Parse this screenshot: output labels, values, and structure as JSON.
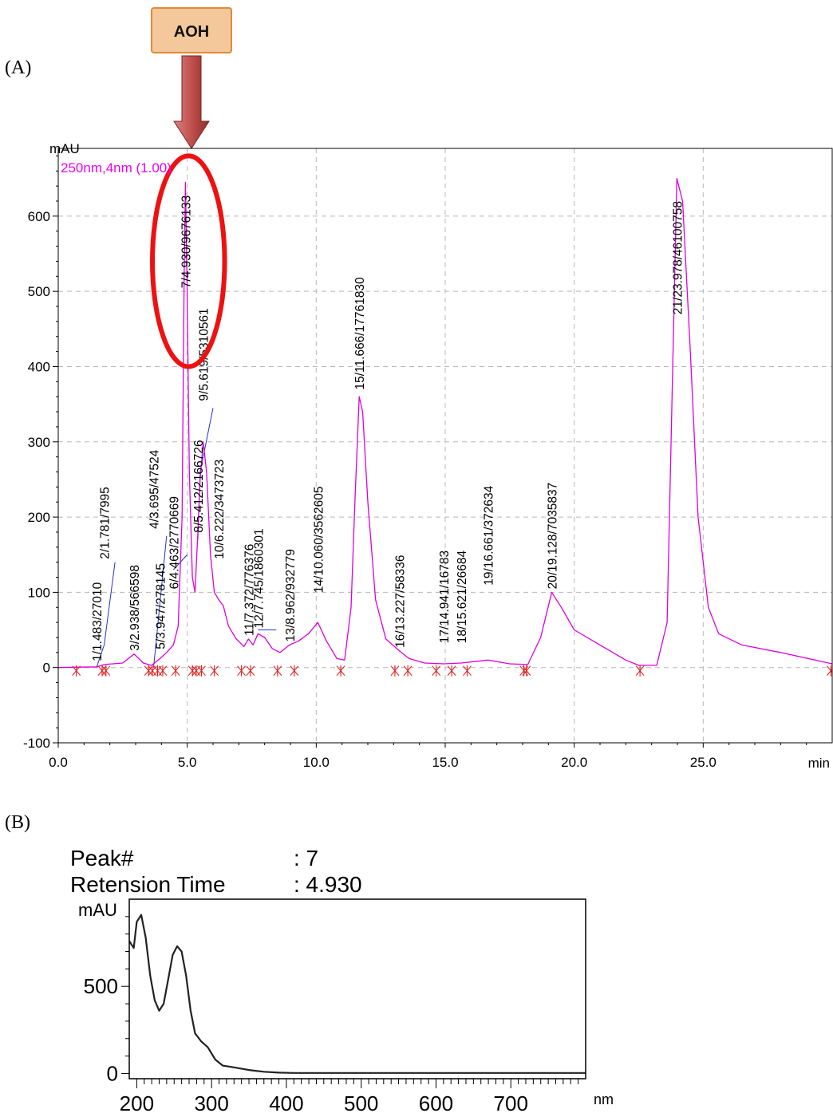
{
  "panel_a": {
    "label": "(A)",
    "callout": {
      "text": "AOH",
      "fill": "#f4c89a",
      "border": "#e08a3a",
      "arrow_color": "#c0504d"
    },
    "chart_data": {
      "type": "line",
      "y_unit": "mAU",
      "x_unit": "min",
      "channel_label": "250nm,4nm (1.00)",
      "xlim": [
        0,
        30
      ],
      "ylim": [
        -100,
        690
      ],
      "x_ticks": [
        0,
        5,
        10,
        15,
        20,
        25
      ],
      "x_tick_labels": [
        "0.0",
        "5.0",
        "10.0",
        "15.0",
        "20.0",
        "25.0"
      ],
      "y_ticks": [
        -100,
        0,
        100,
        200,
        300,
        400,
        500,
        600
      ],
      "y_tick_labels": [
        "-100",
        "0",
        "100",
        "200",
        "300",
        "400",
        "500",
        "600"
      ],
      "grid": true,
      "trace_color": "#dd00dd",
      "trace": [
        [
          0,
          0
        ],
        [
          1.5,
          1
        ],
        [
          1.78,
          4
        ],
        [
          2.5,
          6
        ],
        [
          2.938,
          18
        ],
        [
          3.3,
          6
        ],
        [
          3.6,
          3
        ],
        [
          3.695,
          5
        ],
        [
          3.947,
          12
        ],
        [
          4.2,
          20
        ],
        [
          4.463,
          30
        ],
        [
          4.65,
          55
        ],
        [
          4.8,
          200
        ],
        [
          4.88,
          520
        ],
        [
          4.93,
          645
        ],
        [
          4.99,
          520
        ],
        [
          5.08,
          260
        ],
        [
          5.2,
          120
        ],
        [
          5.3,
          100
        ],
        [
          5.412,
          180
        ],
        [
          5.5,
          250
        ],
        [
          5.619,
          300
        ],
        [
          5.75,
          260
        ],
        [
          5.9,
          150
        ],
        [
          6.05,
          100
        ],
        [
          6.222,
          90
        ],
        [
          6.4,
          82
        ],
        [
          6.6,
          55
        ],
        [
          6.9,
          38
        ],
        [
          7.2,
          28
        ],
        [
          7.372,
          38
        ],
        [
          7.55,
          30
        ],
        [
          7.745,
          45
        ],
        [
          8.0,
          40
        ],
        [
          8.3,
          25
        ],
        [
          8.6,
          20
        ],
        [
          8.962,
          30
        ],
        [
          9.3,
          35
        ],
        [
          9.7,
          45
        ],
        [
          10.06,
          60
        ],
        [
          10.4,
          35
        ],
        [
          10.8,
          12
        ],
        [
          11.1,
          10
        ],
        [
          11.35,
          80
        ],
        [
          11.5,
          220
        ],
        [
          11.666,
          360
        ],
        [
          11.8,
          340
        ],
        [
          12.0,
          220
        ],
        [
          12.3,
          90
        ],
        [
          12.7,
          38
        ],
        [
          13.227,
          22
        ],
        [
          13.6,
          12
        ],
        [
          14.2,
          6
        ],
        [
          14.941,
          5
        ],
        [
          15.621,
          6
        ],
        [
          16.661,
          10
        ],
        [
          17.5,
          5
        ],
        [
          18.2,
          4
        ],
        [
          18.7,
          40
        ],
        [
          19.128,
          100
        ],
        [
          19.5,
          80
        ],
        [
          20.0,
          50
        ],
        [
          21.0,
          30
        ],
        [
          22.0,
          10
        ],
        [
          22.5,
          3
        ],
        [
          23.2,
          3
        ],
        [
          23.6,
          60
        ],
        [
          23.978,
          650
        ],
        [
          24.2,
          620
        ],
        [
          24.5,
          420
        ],
        [
          24.8,
          200
        ],
        [
          25.2,
          80
        ],
        [
          25.6,
          45
        ],
        [
          26.5,
          30
        ],
        [
          28,
          20
        ],
        [
          30,
          5
        ]
      ],
      "baselines": [
        [
          [
            1.483,
            0
          ],
          [
            1.781,
            30
          ],
          [
            2.2,
            140
          ]
        ],
        [
          [
            3.695,
            0
          ],
          [
            4.2,
            175
          ]
        ],
        [
          [
            4.463,
            130
          ],
          [
            5.0,
            150
          ]
        ],
        [
          [
            5.412,
            170
          ],
          [
            5.5,
            260
          ],
          [
            6.0,
            345
          ]
        ],
        [
          [
            7.745,
            50
          ],
          [
            8.45,
            50
          ]
        ]
      ],
      "peak_labels": [
        {
          "text": "1/1.483/27010",
          "x": 1.483,
          "y": 4
        },
        {
          "text": "2/1.781/7995",
          "x": 1.781,
          "y": 140
        },
        {
          "text": "3/2.938/566598",
          "x": 2.938,
          "y": 18
        },
        {
          "text": "4/3.695/47524",
          "x": 3.695,
          "y": 180
        },
        {
          "text": "5/3.947/278145",
          "x": 3.947,
          "y": 20
        },
        {
          "text": "6/4.463/2770669",
          "x": 4.463,
          "y": 100
        },
        {
          "text": "7/4.930/9676133",
          "x": 4.93,
          "y": 500
        },
        {
          "text": "8/5.412/2166726",
          "x": 5.412,
          "y": 175
        },
        {
          "text": "9/5.619/5310561",
          "x": 5.619,
          "y": 350
        },
        {
          "text": "10/6.222/3473723",
          "x": 6.222,
          "y": 140
        },
        {
          "text": "11/7.372/776376",
          "x": 7.372,
          "y": 38
        },
        {
          "text": "12/7.745/1860301",
          "x": 7.745,
          "y": 48
        },
        {
          "text": "13/8.962/932779",
          "x": 8.962,
          "y": 30
        },
        {
          "text": "14/10.060/3562605",
          "x": 10.06,
          "y": 95
        },
        {
          "text": "15/11.666/17761830",
          "x": 11.666,
          "y": 365
        },
        {
          "text": "16/13.227/58336",
          "x": 13.227,
          "y": 22
        },
        {
          "text": "17/14.941/16783",
          "x": 14.941,
          "y": 28
        },
        {
          "text": "18/15.621/26684",
          "x": 15.621,
          "y": 28
        },
        {
          "text": "19/16.661/372634",
          "x": 16.661,
          "y": 105
        },
        {
          "text": "20/19.128/7035837",
          "x": 19.128,
          "y": 100
        },
        {
          "text": "21/23.978/46100758",
          "x": 23.978,
          "y": 465
        }
      ],
      "markers_x": [
        0.7,
        1.7,
        1.85,
        3.5,
        3.65,
        3.85,
        4.05,
        4.55,
        5.2,
        5.35,
        5.55,
        6.05,
        7.1,
        7.45,
        8.5,
        9.15,
        10.95,
        13.05,
        13.55,
        14.65,
        15.25,
        15.85,
        18.05,
        18.15,
        22.55,
        29.95
      ],
      "highlight": {
        "x": 5.05,
        "y": 540,
        "rx": 1.4,
        "ry": 140,
        "color": "#ee1111"
      }
    }
  },
  "panel_b": {
    "label": "(B)",
    "info": [
      {
        "key": "Peak#",
        "value": ": 7"
      },
      {
        "key": "Retension Time",
        "value": ": 4.930"
      }
    ],
    "chart_data": {
      "type": "line",
      "y_unit": "mAU",
      "x_unit": "nm",
      "xlim": [
        190,
        800
      ],
      "ylim": [
        -30,
        1000
      ],
      "x_ticks": [
        200,
        300,
        400,
        500,
        600,
        700
      ],
      "x_tick_labels": [
        "200",
        "300",
        "400",
        "500",
        "600",
        "700"
      ],
      "y_ticks": [
        0,
        500
      ],
      "y_tick_labels": [
        "0",
        "500"
      ],
      "trace_color": "#222222",
      "trace": [
        [
          190,
          760
        ],
        [
          196,
          720
        ],
        [
          200,
          870
        ],
        [
          206,
          910
        ],
        [
          212,
          780
        ],
        [
          218,
          560
        ],
        [
          224,
          420
        ],
        [
          230,
          360
        ],
        [
          236,
          400
        ],
        [
          242,
          540
        ],
        [
          248,
          680
        ],
        [
          254,
          730
        ],
        [
          260,
          700
        ],
        [
          266,
          560
        ],
        [
          272,
          360
        ],
        [
          278,
          230
        ],
        [
          286,
          185
        ],
        [
          295,
          150
        ],
        [
          305,
          80
        ],
        [
          315,
          45
        ],
        [
          330,
          35
        ],
        [
          350,
          20
        ],
        [
          370,
          10
        ],
        [
          390,
          5
        ],
        [
          410,
          3
        ],
        [
          800,
          3
        ]
      ]
    }
  }
}
